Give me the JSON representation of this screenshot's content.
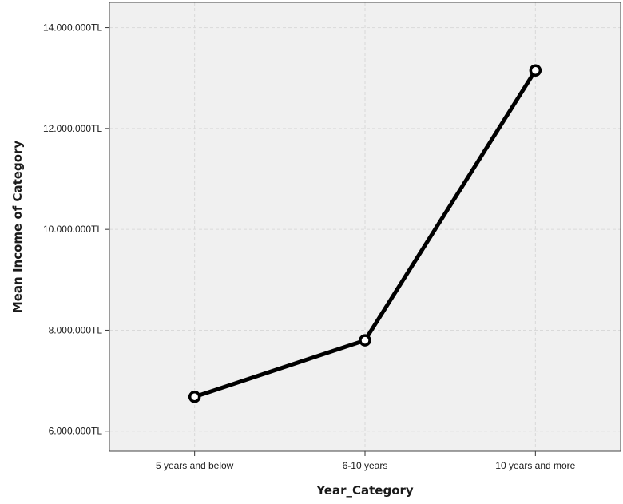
{
  "chart_data": {
    "type": "line",
    "categories": [
      "5 years and below",
      "6-10 years",
      "10 years and more"
    ],
    "series": [
      {
        "values": [
          6680000,
          7800000,
          13150000
        ]
      }
    ],
    "xlabel": "Year_Category",
    "ylabel": "Mean Income of Category",
    "ylim": [
      5600000,
      14500000
    ],
    "yticks": [
      6000000,
      8000000,
      10000000,
      12000000,
      14000000
    ],
    "ytick_labels": [
      "6.000.000TL",
      "8.000.000TL",
      "10.000.000TL",
      "12.000.000TL",
      "14.000.000TL"
    ],
    "grid": true,
    "colors": {
      "plot_background": "#f0f0f0",
      "grid": "#d9d9d9",
      "line": "#000000",
      "marker_fill": "#ffffff"
    }
  }
}
